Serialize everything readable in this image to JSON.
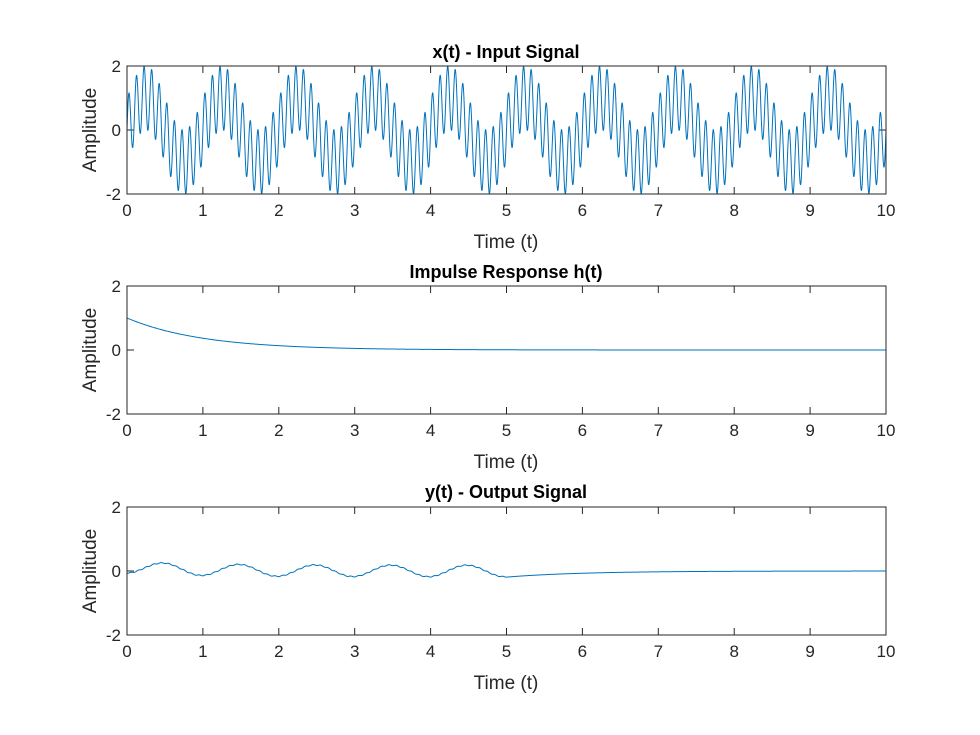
{
  "figure": {
    "background": "#ffffff"
  },
  "chart_data": [
    {
      "type": "line",
      "title": "x(t) - Input Signal",
      "xlabel": "Time (t)",
      "ylabel": "Amplitude",
      "xlim": [
        0,
        10
      ],
      "ylim": [
        -2,
        2
      ],
      "xticks": [
        "0",
        "1",
        "2",
        "3",
        "4",
        "5",
        "6",
        "7",
        "8",
        "9",
        "10"
      ],
      "yticks": [
        "-2",
        "0",
        "2"
      ],
      "grid": false,
      "color": "#0072bd",
      "series": [
        {
          "formula": "sin(2*pi*1*t) + sin(2*pi*10*t)",
          "x_range": [
            0,
            10
          ],
          "components": [
            {
              "amplitude": 1,
              "frequency_hz": 1
            },
            {
              "amplitude": 1,
              "frequency_hz": 10
            }
          ]
        }
      ]
    },
    {
      "type": "line",
      "title": "Impulse Response h(t)",
      "xlabel": "Time (t)",
      "ylabel": "Amplitude",
      "xlim": [
        0,
        10
      ],
      "ylim": [
        -2,
        2
      ],
      "xticks": [
        "0",
        "1",
        "2",
        "3",
        "4",
        "5",
        "6",
        "7",
        "8",
        "9",
        "10"
      ],
      "yticks": [
        "-2",
        "0",
        "2"
      ],
      "grid": false,
      "color": "#0072bd",
      "series": [
        {
          "formula": "exp(-t)",
          "x_range": [
            0,
            10
          ],
          "initial_value": 1,
          "decay_rate": 1
        }
      ]
    },
    {
      "type": "line",
      "title": "y(t) - Output Signal",
      "xlabel": "Time (t)",
      "ylabel": "Amplitude",
      "xlim": [
        0,
        10
      ],
      "ylim": [
        -2,
        2
      ],
      "xticks": [
        "0",
        "1",
        "2",
        "3",
        "4",
        "5",
        "6",
        "7",
        "8",
        "9",
        "10"
      ],
      "yticks": [
        "-2",
        "0",
        "2"
      ],
      "grid": false,
      "color": "#0072bd",
      "series": [
        {
          "formula": "response of first-order system to x(t) for t < 5, then exponential decay",
          "x_range": [
            0,
            10
          ],
          "cutoff_t": 5,
          "peak_value": 0.17,
          "value_at_t0": -0.08,
          "value_at_t10": -0.001
        }
      ]
    }
  ]
}
